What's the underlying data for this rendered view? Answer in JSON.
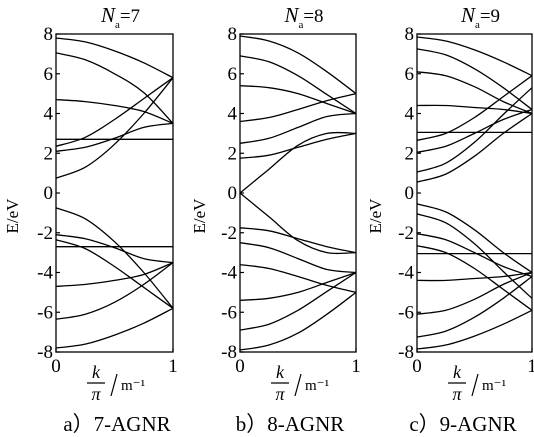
{
  "chart_data": [
    {
      "type": "line",
      "panel_id": "a",
      "title": {
        "var": "N",
        "sub": "a",
        "eq": "=7"
      },
      "xlabel": {
        "num": "k",
        "den": "π",
        "unit": "m⁻¹"
      },
      "ylabel": "E/eV",
      "xlim": [
        0,
        1
      ],
      "ylim": [
        -8,
        8
      ],
      "xticks": [
        "0",
        "1"
      ],
      "yticks": [
        "8",
        "6",
        "4",
        "2",
        "0",
        "-2",
        "-4",
        "-6",
        "-8"
      ],
      "caption": "a）7-AGNR",
      "series": [
        {
          "values": [
            [
              0,
              7.8
            ],
            [
              0.25,
              7.6
            ],
            [
              0.5,
              7.15
            ],
            [
              0.75,
              6.55
            ],
            [
              1,
              5.8
            ]
          ]
        },
        {
          "values": [
            [
              0,
              7.05
            ],
            [
              0.25,
              6.7
            ],
            [
              0.5,
              6.0
            ],
            [
              0.75,
              5.05
            ],
            [
              1,
              3.5
            ]
          ]
        },
        {
          "values": [
            [
              0,
              4.7
            ],
            [
              0.25,
              4.6
            ],
            [
              0.5,
              4.4
            ],
            [
              0.75,
              4.1
            ],
            [
              1,
              3.5
            ]
          ]
        },
        {
          "values": [
            [
              0,
              2.35
            ],
            [
              0.25,
              2.8
            ],
            [
              0.5,
              3.7
            ],
            [
              0.75,
              4.75
            ],
            [
              1,
              5.8
            ]
          ]
        },
        {
          "values": [
            [
              0,
              2.7
            ],
            [
              1,
              2.7
            ]
          ]
        },
        {
          "values": [
            [
              0,
              2.1
            ],
            [
              0.25,
              2.3
            ],
            [
              0.5,
              2.75
            ],
            [
              0.75,
              3.3
            ],
            [
              1,
              3.5
            ]
          ]
        },
        {
          "values": [
            [
              0,
              0.75
            ],
            [
              0.25,
              1.3
            ],
            [
              0.5,
              2.45
            ],
            [
              0.75,
              4.0
            ],
            [
              1,
              5.8
            ]
          ]
        },
        {
          "values": [
            [
              0,
              -0.75
            ],
            [
              0.25,
              -1.3
            ],
            [
              0.5,
              -2.45
            ],
            [
              0.75,
              -4.0
            ],
            [
              1,
              -5.8
            ]
          ]
        },
        {
          "values": [
            [
              0,
              -2.1
            ],
            [
              0.25,
              -2.3
            ],
            [
              0.5,
              -2.75
            ],
            [
              0.75,
              -3.3
            ],
            [
              1,
              -3.5
            ]
          ]
        },
        {
          "values": [
            [
              0,
              -2.7
            ],
            [
              1,
              -2.7
            ]
          ]
        },
        {
          "values": [
            [
              0,
              -2.35
            ],
            [
              0.25,
              -2.8
            ],
            [
              0.5,
              -3.7
            ],
            [
              0.75,
              -4.75
            ],
            [
              1,
              -5.8
            ]
          ]
        },
        {
          "values": [
            [
              0,
              -4.7
            ],
            [
              0.25,
              -4.6
            ],
            [
              0.5,
              -4.4
            ],
            [
              0.75,
              -4.1
            ],
            [
              1,
              -3.5
            ]
          ]
        },
        {
          "values": [
            [
              0,
              -6.35
            ],
            [
              0.25,
              -6.1
            ],
            [
              0.5,
              -5.5
            ],
            [
              0.75,
              -4.6
            ],
            [
              1,
              -3.5
            ]
          ]
        },
        {
          "values": [
            [
              0,
              -7.8
            ],
            [
              0.25,
              -7.6
            ],
            [
              0.5,
              -7.15
            ],
            [
              0.75,
              -6.55
            ],
            [
              1,
              -5.8
            ]
          ]
        }
      ]
    },
    {
      "type": "line",
      "panel_id": "b",
      "title": {
        "var": "N",
        "sub": "a",
        "eq": "=8"
      },
      "xlabel": {
        "num": "k",
        "den": "π",
        "unit": "m⁻¹"
      },
      "ylabel": "E/eV",
      "xlim": [
        0,
        1
      ],
      "ylim": [
        -8,
        8
      ],
      "xticks": [
        "0",
        "1"
      ],
      "yticks": [
        "8",
        "6",
        "4",
        "2",
        "0",
        "-2",
        "-4",
        "-6",
        "-8"
      ],
      "caption": "b）8-AGNR",
      "series": [
        {
          "values": [
            [
              0,
              7.9
            ],
            [
              0.25,
              7.65
            ],
            [
              0.5,
              7.05
            ],
            [
              0.75,
              6.1
            ],
            [
              1,
              5.0
            ]
          ]
        },
        {
          "values": [
            [
              0,
              6.9
            ],
            [
              0.25,
              6.6
            ],
            [
              0.5,
              5.9
            ],
            [
              0.75,
              4.95
            ],
            [
              1,
              4.0
            ]
          ]
        },
        {
          "values": [
            [
              0,
              5.4
            ],
            [
              0.25,
              5.3
            ],
            [
              0.5,
              5.0
            ],
            [
              0.75,
              4.5
            ],
            [
              1,
              4.0
            ]
          ]
        },
        {
          "values": [
            [
              0,
              3.6
            ],
            [
              0.25,
              3.8
            ],
            [
              0.5,
              4.2
            ],
            [
              0.75,
              4.65
            ],
            [
              1,
              5.0
            ]
          ]
        },
        {
          "values": [
            [
              0,
              2.5
            ],
            [
              0.25,
              2.75
            ],
            [
              0.5,
              3.3
            ],
            [
              0.75,
              3.85
            ],
            [
              1,
              4.0
            ]
          ]
        },
        {
          "values": [
            [
              0,
              1.75
            ],
            [
              0.25,
              1.9
            ],
            [
              0.5,
              2.3
            ],
            [
              0.75,
              2.7
            ],
            [
              1,
              3.0
            ]
          ]
        },
        {
          "values": [
            [
              0,
              0
            ],
            [
              0.25,
              1.2
            ],
            [
              0.5,
              2.4
            ],
            [
              0.75,
              3.0
            ],
            [
              1,
              3.0
            ]
          ]
        },
        {
          "values": [
            [
              0,
              0
            ],
            [
              0.25,
              -1.2
            ],
            [
              0.5,
              -2.4
            ],
            [
              0.75,
              -3.0
            ],
            [
              1,
              -3.0
            ]
          ]
        },
        {
          "values": [
            [
              0,
              -1.75
            ],
            [
              0.25,
              -1.9
            ],
            [
              0.5,
              -2.3
            ],
            [
              0.75,
              -2.7
            ],
            [
              1,
              -3.0
            ]
          ]
        },
        {
          "values": [
            [
              0,
              -2.5
            ],
            [
              0.25,
              -2.75
            ],
            [
              0.5,
              -3.3
            ],
            [
              0.75,
              -3.85
            ],
            [
              1,
              -4.0
            ]
          ]
        },
        {
          "values": [
            [
              0,
              -3.6
            ],
            [
              0.25,
              -3.8
            ],
            [
              0.5,
              -4.2
            ],
            [
              0.75,
              -4.65
            ],
            [
              1,
              -5.0
            ]
          ]
        },
        {
          "values": [
            [
              0,
              -5.4
            ],
            [
              0.25,
              -5.3
            ],
            [
              0.5,
              -5.0
            ],
            [
              0.75,
              -4.5
            ],
            [
              1,
              -4.0
            ]
          ]
        },
        {
          "values": [
            [
              0,
              -6.9
            ],
            [
              0.25,
              -6.6
            ],
            [
              0.5,
              -5.9
            ],
            [
              0.75,
              -4.95
            ],
            [
              1,
              -4.0
            ]
          ]
        },
        {
          "values": [
            [
              0,
              -7.9
            ],
            [
              0.25,
              -7.65
            ],
            [
              0.5,
              -7.05
            ],
            [
              0.75,
              -6.1
            ],
            [
              1,
              -5.0
            ]
          ]
        }
      ]
    },
    {
      "type": "line",
      "panel_id": "c",
      "title": {
        "var": "N",
        "sub": "a",
        "eq": "=9"
      },
      "xlabel": {
        "num": "k",
        "den": "π",
        "unit": "m⁻¹"
      },
      "ylabel": "E/eV",
      "xlim": [
        0,
        1
      ],
      "ylim": [
        -8,
        8
      ],
      "xticks": [
        "0",
        "1"
      ],
      "yticks": [
        "8",
        "6",
        "4",
        "2",
        "0",
        "-2",
        "-4",
        "-6",
        "-8"
      ],
      "caption": "c）9-AGNR",
      "series": [
        {
          "values": [
            [
              0,
              7.85
            ],
            [
              0.25,
              7.65
            ],
            [
              0.5,
              7.2
            ],
            [
              0.75,
              6.6
            ],
            [
              1,
              5.9
            ]
          ]
        },
        {
          "values": [
            [
              0,
              7.25
            ],
            [
              0.25,
              6.95
            ],
            [
              0.5,
              6.25
            ],
            [
              0.75,
              5.3
            ],
            [
              1,
              4.2
            ]
          ]
        },
        {
          "values": [
            [
              0,
              6.1
            ],
            [
              0.25,
              5.9
            ],
            [
              0.5,
              5.35
            ],
            [
              0.75,
              4.6
            ],
            [
              1,
              4.0
            ]
          ]
        },
        {
          "values": [
            [
              0,
              4.4
            ],
            [
              0.25,
              4.4
            ],
            [
              0.5,
              4.3
            ],
            [
              0.75,
              4.2
            ],
            [
              1,
              4.0
            ]
          ]
        },
        {
          "values": [
            [
              0,
              3.05
            ],
            [
              1,
              3.05
            ]
          ]
        },
        {
          "values": [
            [
              0,
              2.65
            ],
            [
              0.25,
              3.0
            ],
            [
              0.5,
              3.8
            ],
            [
              0.75,
              4.85
            ],
            [
              1,
              5.9
            ]
          ]
        },
        {
          "values": [
            [
              0,
              2.05
            ],
            [
              0.25,
              2.35
            ],
            [
              0.5,
              3.0
            ],
            [
              0.75,
              3.7
            ],
            [
              1,
              4.2
            ]
          ]
        },
        {
          "values": [
            [
              0,
              1.05
            ],
            [
              0.25,
              1.5
            ],
            [
              0.5,
              2.55
            ],
            [
              0.75,
              3.95
            ],
            [
              1,
              5.3
            ]
          ]
        },
        {
          "values": [
            [
              0,
              0.55
            ],
            [
              0.25,
              0.95
            ],
            [
              0.5,
              1.85
            ],
            [
              0.75,
              3.0
            ],
            [
              1,
              4.0
            ]
          ]
        },
        {
          "values": [
            [
              0,
              -0.55
            ],
            [
              0.25,
              -0.95
            ],
            [
              0.5,
              -1.85
            ],
            [
              0.75,
              -3.0
            ],
            [
              1,
              -4.0
            ]
          ]
        },
        {
          "values": [
            [
              0,
              -1.05
            ],
            [
              0.25,
              -1.5
            ],
            [
              0.5,
              -2.55
            ],
            [
              0.75,
              -3.95
            ],
            [
              1,
              -5.3
            ]
          ]
        },
        {
          "values": [
            [
              0,
              -2.05
            ],
            [
              0.25,
              -2.35
            ],
            [
              0.5,
              -3.0
            ],
            [
              0.75,
              -3.7
            ],
            [
              1,
              -4.2
            ]
          ]
        },
        {
          "values": [
            [
              0,
              -3.05
            ],
            [
              1,
              -3.05
            ]
          ]
        },
        {
          "values": [
            [
              0,
              -2.65
            ],
            [
              0.25,
              -3.0
            ],
            [
              0.5,
              -3.8
            ],
            [
              0.75,
              -4.85
            ],
            [
              1,
              -5.9
            ]
          ]
        },
        {
          "values": [
            [
              0,
              -4.4
            ],
            [
              0.25,
              -4.4
            ],
            [
              0.5,
              -4.3
            ],
            [
              0.75,
              -4.2
            ],
            [
              1,
              -4.0
            ]
          ]
        },
        {
          "values": [
            [
              0,
              -6.1
            ],
            [
              0.25,
              -5.9
            ],
            [
              0.5,
              -5.35
            ],
            [
              0.75,
              -4.6
            ],
            [
              1,
              -4.0
            ]
          ]
        },
        {
          "values": [
            [
              0,
              -7.25
            ],
            [
              0.25,
              -6.95
            ],
            [
              0.5,
              -6.25
            ],
            [
              0.75,
              -5.3
            ],
            [
              1,
              -4.2
            ]
          ]
        },
        {
          "values": [
            [
              0,
              -7.85
            ],
            [
              0.25,
              -7.65
            ],
            [
              0.5,
              -7.2
            ],
            [
              0.75,
              -6.6
            ],
            [
              1,
              -5.9
            ]
          ]
        }
      ]
    }
  ]
}
